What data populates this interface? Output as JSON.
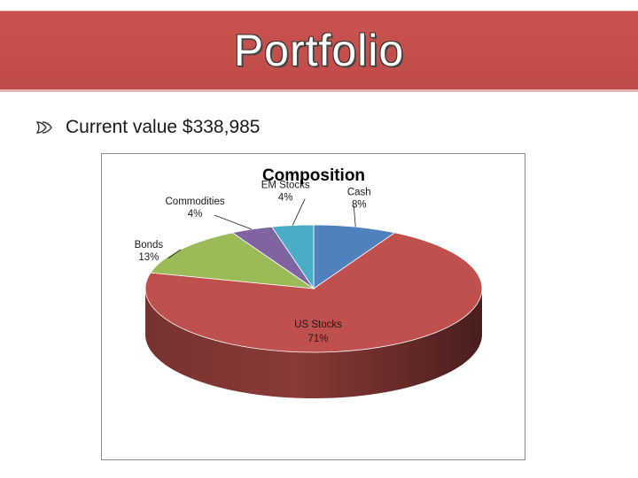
{
  "slide": {
    "title": "Portfolio",
    "bullet": "Current value $338,985"
  },
  "colors": {
    "title_band": "#c0504d",
    "US Stocks": "#c0504d",
    "Cash": "#4f81bd",
    "EM Stocks": "#4bacc6",
    "Commodities": "#8064a2",
    "Bonds": "#9bbb59"
  },
  "chart_data": {
    "type": "pie",
    "title": "Composition",
    "style": "3d",
    "legend": "none",
    "slices": [
      {
        "label": "Cash",
        "value": 8,
        "value_label": "8%"
      },
      {
        "label": "US Stocks",
        "value": 71,
        "value_label": "71%"
      },
      {
        "label": "Bonds",
        "value": 13,
        "value_label": "13%"
      },
      {
        "label": "Commodities",
        "value": 4,
        "value_label": "4%"
      },
      {
        "label": "EM Stocks",
        "value": 4,
        "value_label": "4%"
      }
    ]
  }
}
